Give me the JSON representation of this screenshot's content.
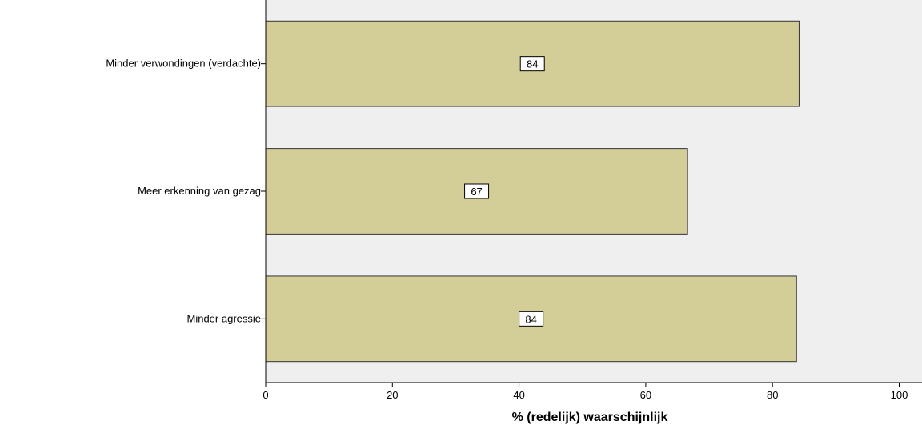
{
  "chart_data": {
    "type": "bar",
    "orientation": "horizontal",
    "categories": [
      "Minder verwondingen (verdachte)",
      "Meer erkenning van gezag",
      "Minder agressie"
    ],
    "values": [
      84.2,
      66.6,
      83.8
    ],
    "data_labels": [
      "84",
      "67",
      "84"
    ],
    "xlabel": "% (redelijk) waarschijnlijk",
    "ylabel": "",
    "xlim": [
      0,
      100
    ],
    "xticks": [
      0,
      20,
      40,
      60,
      80,
      100
    ],
    "grid": false,
    "colors": {
      "plot_background": "#efefef",
      "bar_fill": "#d3ce98",
      "bar_stroke": "#333333",
      "label_box_fill": "#ffffff"
    }
  }
}
